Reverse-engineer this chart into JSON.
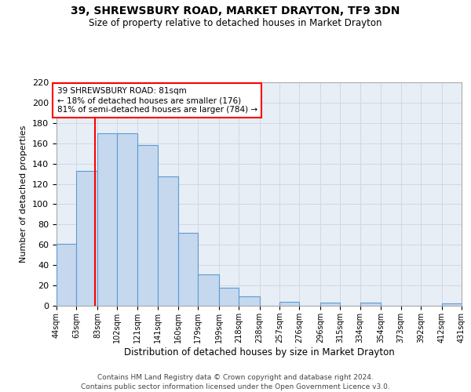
{
  "title": "39, SHREWSBURY ROAD, MARKET DRAYTON, TF9 3DN",
  "subtitle": "Size of property relative to detached houses in Market Drayton",
  "xlabel": "Distribution of detached houses by size in Market Drayton",
  "ylabel": "Number of detached properties",
  "bar_color": "#c5d8ed",
  "bar_edge_color": "#5b9bd5",
  "background_color": "#ffffff",
  "grid_color": "#d0d8e4",
  "axes_bg_color": "#e8eef5",
  "red_line_x": 81,
  "annotation_title": "39 SHREWSBURY ROAD: 81sqm",
  "annotation_line1": "← 18% of detached houses are smaller (176)",
  "annotation_line2": "81% of semi-detached houses are larger (784) →",
  "bins": [
    44,
    63,
    83,
    102,
    121,
    141,
    160,
    179,
    199,
    218,
    238,
    257,
    276,
    296,
    315,
    334,
    354,
    373,
    392,
    412,
    431
  ],
  "counts": [
    61,
    133,
    170,
    170,
    158,
    127,
    72,
    31,
    18,
    9,
    0,
    4,
    0,
    3,
    0,
    3,
    0,
    0,
    0,
    2
  ],
  "ylim": [
    0,
    220
  ],
  "yticks": [
    0,
    20,
    40,
    60,
    80,
    100,
    120,
    140,
    160,
    180,
    200,
    220
  ],
  "footnote1": "Contains HM Land Registry data © Crown copyright and database right 2024.",
  "footnote2": "Contains public sector information licensed under the Open Government Licence v3.0."
}
